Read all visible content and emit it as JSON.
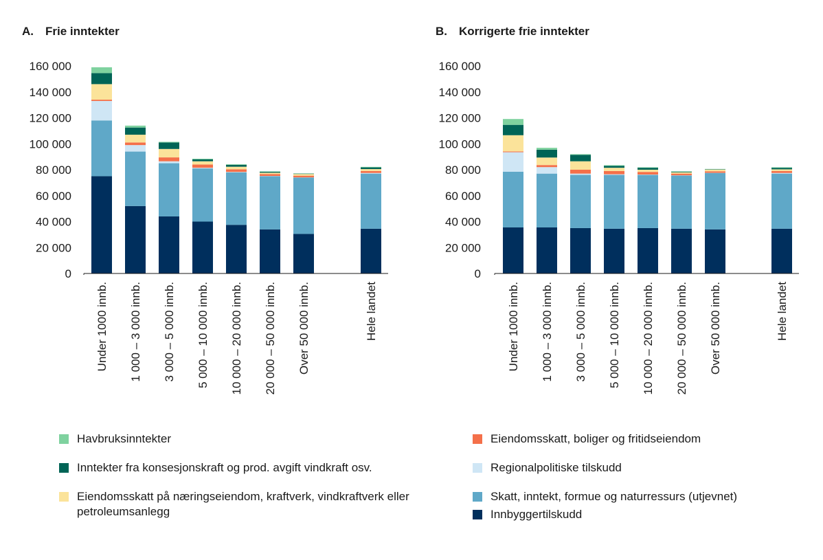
{
  "chart_data": [
    {
      "type": "bar",
      "stacked": true,
      "title": "Frie inntekter",
      "panel_letter": "A.",
      "categories": [
        "Under 1000 innb.",
        "1 000 – 3 000 innb.",
        "3 000 – 5 000 innb.",
        "5 000 – 10 000 innb.",
        "10 000 – 20 000 innb.",
        "20 000 – 50 000 innb.",
        "Over 50 000 innb.",
        "Hele landet"
      ],
      "ylim": [
        0,
        160000
      ],
      "yticks": [
        "0",
        "20 000",
        "40 000",
        "60 000",
        "80 000",
        "100 000",
        "120 000",
        "140 000",
        "160 000"
      ],
      "ytick_values": [
        0,
        20000,
        40000,
        60000,
        80000,
        100000,
        120000,
        140000,
        160000
      ],
      "series": [
        {
          "name": "Innbyggertilskudd",
          "color": "#002f5d",
          "values": [
            75000,
            52000,
            44000,
            40000,
            37500,
            34000,
            30500,
            34500
          ]
        },
        {
          "name": "Skatt, inntekt, formue og naturressurs (utjevnet)",
          "color": "#5fa8c8",
          "values": [
            43000,
            42000,
            41000,
            41000,
            40500,
            41000,
            43500,
            42500
          ]
        },
        {
          "name": "Regionalpolitiske tilskudd",
          "color": "#cfe6f5",
          "values": [
            15000,
            5000,
            1500,
            500,
            300,
            200,
            100,
            500
          ]
        },
        {
          "name": "Eiendomsskatt, boliger og fritidseiendom",
          "color": "#f4704a",
          "values": [
            1000,
            2000,
            3000,
            2500,
            2000,
            1500,
            1300,
            1500
          ]
        },
        {
          "name": "Eiendomsskatt på næringseiendom, kraftverk, vindkraftverk eller petroleumsanlegg",
          "color": "#fbe39a",
          "values": [
            12000,
            6000,
            6500,
            2500,
            2000,
            1000,
            1300,
            1500
          ]
        },
        {
          "name": "Inntekter fra konsesjonskraft og prod. avgift vindkraft osv.",
          "color": "#006456",
          "values": [
            8500,
            5500,
            5000,
            1500,
            1500,
            700,
            300,
            1300
          ]
        },
        {
          "name": "Havbruksinntekter",
          "color": "#7fd29f",
          "values": [
            4500,
            1500,
            500,
            500,
            400,
            300,
            200,
            400
          ]
        }
      ]
    },
    {
      "type": "bar",
      "stacked": true,
      "title": "Korrigerte frie inntekter",
      "panel_letter": "B.",
      "categories": [
        "Under 1000 innb.",
        "1 000 – 3 000 innb.",
        "3 000 – 5 000 innb.",
        "5 000 – 10 000 innb.",
        "10 000 – 20 000 innb.",
        "20 000 – 50 000 innb.",
        "Over 50 000 innb.",
        "Hele landet"
      ],
      "ylim": [
        0,
        160000
      ],
      "yticks": [
        "0",
        "20 000",
        "40 000",
        "60 000",
        "80 000",
        "100 000",
        "120 000",
        "140 000",
        "160 000"
      ],
      "ytick_values": [
        0,
        20000,
        40000,
        60000,
        80000,
        100000,
        120000,
        140000,
        160000
      ],
      "series": [
        {
          "name": "Innbyggertilskudd",
          "color": "#002f5d",
          "values": [
            35500,
            35500,
            35000,
            34500,
            35000,
            34500,
            34000,
            34500
          ]
        },
        {
          "name": "Skatt, inntekt, formue og naturressurs (utjevnet)",
          "color": "#5fa8c8",
          "values": [
            43000,
            41500,
            41000,
            41500,
            41000,
            41000,
            43500,
            42500
          ]
        },
        {
          "name": "Regionalpolitiske tilskudd",
          "color": "#cfe6f5",
          "values": [
            15000,
            5000,
            1000,
            500,
            300,
            200,
            100,
            500
          ]
        },
        {
          "name": "Eiendomsskatt, boliger og fritidseiendom",
          "color": "#f4704a",
          "values": [
            600,
            1600,
            3000,
            2500,
            2000,
            1300,
            1200,
            1500
          ]
        },
        {
          "name": "Eiendomsskatt på næringseiendom, kraftverk, vindkraftverk eller petroleumsanlegg",
          "color": "#fbe39a",
          "values": [
            12500,
            5800,
            6500,
            2500,
            1700,
            1000,
            1300,
            1300
          ]
        },
        {
          "name": "Inntekter fra konsesjonskraft og prod. avgift vindkraft osv.",
          "color": "#006456",
          "values": [
            8000,
            6000,
            5000,
            1500,
            1500,
            500,
            300,
            1200
          ]
        },
        {
          "name": "Havbruksinntekter",
          "color": "#7fd29f",
          "values": [
            4500,
            1500,
            500,
            500,
            400,
            300,
            200,
            400
          ]
        }
      ]
    }
  ],
  "legend": {
    "left": [
      {
        "label": "Havbruksinntekter",
        "color": "#7fd29f"
      },
      {
        "label": "Inntekter fra konsesjonskraft og prod. avgift vindkraft osv.",
        "color": "#006456"
      },
      {
        "label": "Eiendomsskatt på næringseiendom, kraftverk, vindkraftverk eller petroleumsanlegg",
        "color": "#fbe39a"
      }
    ],
    "right": [
      {
        "label": "Eiendomsskatt, boliger og fritidseiendom",
        "color": "#f4704a"
      },
      {
        "label": "Regionalpolitiske tilskudd",
        "color": "#cfe6f5"
      },
      {
        "label": "Skatt, inntekt, formue og naturressurs (utjevnet)",
        "color": "#5fa8c8"
      },
      {
        "label": "Innbyggertilskudd",
        "color": "#002f5d"
      }
    ]
  }
}
